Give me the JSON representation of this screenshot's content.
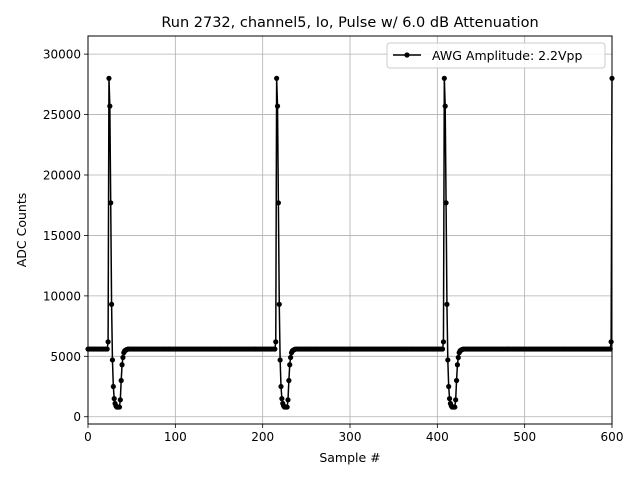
{
  "chart_data": {
    "type": "line",
    "title": "Run 2732, channel5, Io, Pulse w/ 6.0 dB Attenuation",
    "xlabel": "Sample #",
    "ylabel": "ADC Counts",
    "xlim": [
      0,
      600
    ],
    "ylim": [
      -600,
      31500
    ],
    "xticks": [
      0,
      100,
      200,
      300,
      400,
      500,
      600
    ],
    "yticks": [
      0,
      5000,
      10000,
      15000,
      20000,
      25000,
      30000
    ],
    "xtick_labels": [
      "0",
      "100",
      "200",
      "300",
      "400",
      "500",
      "600"
    ],
    "ytick_labels": [
      "0",
      "5000",
      "10000",
      "15000",
      "20000",
      "25000",
      "30000"
    ],
    "grid": true,
    "legend_position": "upper right",
    "series": [
      {
        "name": "AWG Amplitude: 2.2Vpp",
        "color": "#000000",
        "marker": "circle",
        "baseline": 5600,
        "sample_step": 2,
        "pulse_starts": [
          23,
          215,
          407,
          599
        ],
        "pulse_shape": {
          "offsets": [
            0,
            1,
            2,
            3,
            4,
            5,
            6,
            7,
            8,
            9,
            10,
            11,
            12,
            13,
            14,
            15,
            16,
            17,
            18,
            19,
            20,
            21,
            22,
            23
          ],
          "values": [
            6200,
            28000,
            25700,
            17700,
            9300,
            4700,
            2500,
            1500,
            1100,
            900,
            800,
            800,
            800,
            800,
            1400,
            3000,
            4300,
            4900,
            5300,
            5450,
            5500,
            5550,
            5580,
            5600
          ]
        }
      }
    ]
  }
}
